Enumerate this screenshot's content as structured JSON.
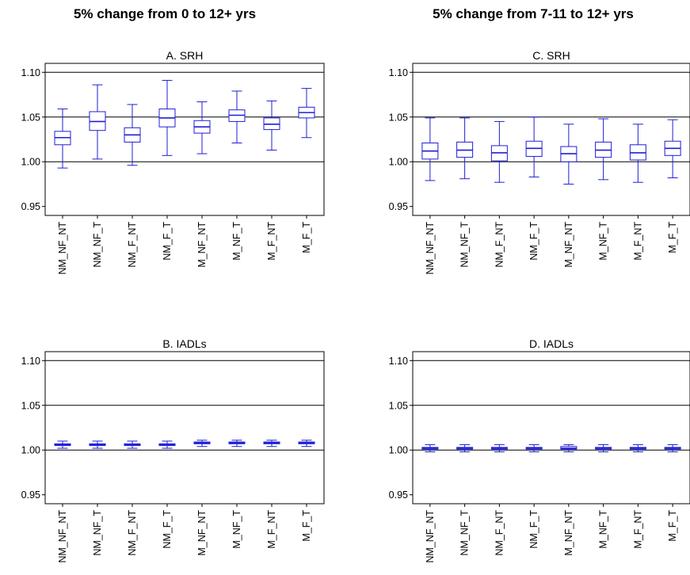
{
  "column_titles": [
    "5% change from 0 to 12+ yrs",
    "5% change from 7-11 to 12+ yrs"
  ],
  "chart_data": [
    {
      "type": "box",
      "title": "A. SRH",
      "categories": [
        "NM_NF_NT",
        "NM_NF_T",
        "NM_F_NT",
        "NM_F_T",
        "M_NF_NT",
        "M_NF_T",
        "M_F_NT",
        "M_F_T"
      ],
      "ylim": [
        0.94,
        1.11
      ],
      "yticks": [
        "0.95",
        "1.00",
        "1.05",
        "1.10"
      ],
      "hlines": [
        1.0,
        1.05,
        1.1
      ],
      "boxes": [
        {
          "min": 0.993,
          "q1": 1.019,
          "median": 1.027,
          "q3": 1.034,
          "max": 1.059
        },
        {
          "min": 1.003,
          "q1": 1.035,
          "median": 1.045,
          "q3": 1.056,
          "max": 1.086
        },
        {
          "min": 0.996,
          "q1": 1.022,
          "median": 1.03,
          "q3": 1.038,
          "max": 1.064
        },
        {
          "min": 1.007,
          "q1": 1.039,
          "median": 1.049,
          "q3": 1.059,
          "max": 1.091
        },
        {
          "min": 1.009,
          "q1": 1.032,
          "median": 1.039,
          "q3": 1.046,
          "max": 1.067
        },
        {
          "min": 1.021,
          "q1": 1.045,
          "median": 1.052,
          "q3": 1.058,
          "max": 1.079
        },
        {
          "min": 1.013,
          "q1": 1.036,
          "median": 1.042,
          "q3": 1.049,
          "max": 1.068
        },
        {
          "min": 1.027,
          "q1": 1.049,
          "median": 1.055,
          "q3": 1.061,
          "max": 1.082
        }
      ]
    },
    {
      "type": "box",
      "title": "C. SRH",
      "categories": [
        "NM_NF_NT",
        "NM_NF_T",
        "NM_F_NT",
        "NM_F_T",
        "M_NF_NT",
        "M_NF_T",
        "M_F_NT",
        "M_F_T"
      ],
      "ylim": [
        0.94,
        1.11
      ],
      "yticks": [
        "0.95",
        "1.00",
        "1.05",
        "1.10"
      ],
      "hlines": [
        1.0,
        1.05,
        1.1
      ],
      "boxes": [
        {
          "min": 0.979,
          "q1": 1.003,
          "median": 1.012,
          "q3": 1.021,
          "max": 1.049
        },
        {
          "min": 0.981,
          "q1": 1.005,
          "median": 1.013,
          "q3": 1.022,
          "max": 1.049
        },
        {
          "min": 0.977,
          "q1": 1.001,
          "median": 1.01,
          "q3": 1.018,
          "max": 1.045
        },
        {
          "min": 0.983,
          "q1": 1.006,
          "median": 1.015,
          "q3": 1.023,
          "max": 1.05
        },
        {
          "min": 0.975,
          "q1": 1.0,
          "median": 1.009,
          "q3": 1.017,
          "max": 1.042
        },
        {
          "min": 0.98,
          "q1": 1.005,
          "median": 1.013,
          "q3": 1.022,
          "max": 1.048
        },
        {
          "min": 0.977,
          "q1": 1.002,
          "median": 1.01,
          "q3": 1.019,
          "max": 1.042
        },
        {
          "min": 0.982,
          "q1": 1.007,
          "median": 1.015,
          "q3": 1.023,
          "max": 1.047
        }
      ]
    },
    {
      "type": "box",
      "title": "B. IADLs",
      "categories": [
        "NM_NF_NT",
        "NM_NF_T",
        "NM_F_NT",
        "NM_F_T",
        "M_NF_NT",
        "M_NF_T",
        "M_F_NT",
        "M_F_T"
      ],
      "ylim": [
        0.94,
        1.11
      ],
      "yticks": [
        "0.95",
        "1.00",
        "1.05",
        "1.10"
      ],
      "hlines": [
        1.0,
        1.05,
        1.1
      ],
      "boxes": [
        {
          "min": 1.002,
          "q1": 1.005,
          "median": 1.006,
          "q3": 1.007,
          "max": 1.01
        },
        {
          "min": 1.002,
          "q1": 1.005,
          "median": 1.006,
          "q3": 1.007,
          "max": 1.01
        },
        {
          "min": 1.002,
          "q1": 1.005,
          "median": 1.006,
          "q3": 1.007,
          "max": 1.01
        },
        {
          "min": 1.002,
          "q1": 1.005,
          "median": 1.006,
          "q3": 1.007,
          "max": 1.01
        },
        {
          "min": 1.004,
          "q1": 1.007,
          "median": 1.008,
          "q3": 1.009,
          "max": 1.011
        },
        {
          "min": 1.004,
          "q1": 1.007,
          "median": 1.008,
          "q3": 1.009,
          "max": 1.011
        },
        {
          "min": 1.004,
          "q1": 1.007,
          "median": 1.008,
          "q3": 1.009,
          "max": 1.011
        },
        {
          "min": 1.004,
          "q1": 1.007,
          "median": 1.008,
          "q3": 1.009,
          "max": 1.011
        }
      ]
    },
    {
      "type": "box",
      "title": "D. IADLs",
      "categories": [
        "NM_NF_NT",
        "NM_NF_T",
        "NM_F_NT",
        "NM_F_T",
        "M_NF_NT",
        "M_NF_T",
        "M_F_NT",
        "M_F_T"
      ],
      "ylim": [
        0.94,
        1.11
      ],
      "yticks": [
        "0.95",
        "1.00",
        "1.05",
        "1.10"
      ],
      "hlines": [
        1.0,
        1.05,
        1.1
      ],
      "boxes": [
        {
          "min": 0.998,
          "q1": 1.001,
          "median": 1.002,
          "q3": 1.003,
          "max": 1.006
        },
        {
          "min": 0.998,
          "q1": 1.001,
          "median": 1.002,
          "q3": 1.003,
          "max": 1.006
        },
        {
          "min": 0.998,
          "q1": 1.001,
          "median": 1.002,
          "q3": 1.003,
          "max": 1.006
        },
        {
          "min": 0.998,
          "q1": 1.001,
          "median": 1.002,
          "q3": 1.003,
          "max": 1.006
        },
        {
          "min": 0.998,
          "q1": 1.001,
          "median": 1.002,
          "q3": 1.004,
          "max": 1.006
        },
        {
          "min": 0.998,
          "q1": 1.001,
          "median": 1.002,
          "q3": 1.003,
          "max": 1.006
        },
        {
          "min": 0.998,
          "q1": 1.001,
          "median": 1.002,
          "q3": 1.003,
          "max": 1.006
        },
        {
          "min": 0.998,
          "q1": 1.001,
          "median": 1.002,
          "q3": 1.003,
          "max": 1.006
        }
      ]
    }
  ],
  "colors": {
    "box": "#1f1fd6",
    "frame": "#000000",
    "reference_line": "#000000"
  }
}
